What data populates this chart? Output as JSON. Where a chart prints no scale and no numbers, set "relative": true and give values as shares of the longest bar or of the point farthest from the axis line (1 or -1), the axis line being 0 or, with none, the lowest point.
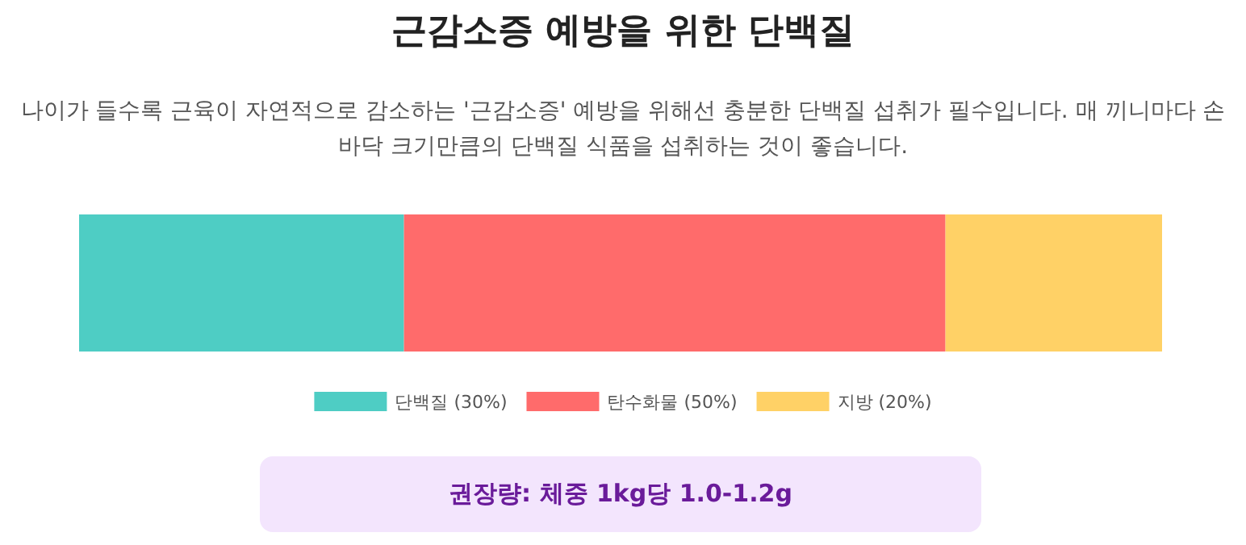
{
  "chart_data": {
    "type": "bar",
    "orientation": "horizontal",
    "stacked": true,
    "relative": true,
    "title": "근감소증 예방을 위한 단백질",
    "subtitle": "나이가 들수록 근육이 자연적으로 감소하는 '근감소증' 예방을 위해선 충분한 단백질 섭취가 필수입니다. 매 끼니마다 손바닥 크기만큼의 단백질 식품을 섭취하는 것이 좋습니다.",
    "categories": [
      null
    ],
    "legend": "bottom",
    "series": [
      {
        "name": "단백질 (30%)",
        "color": "#4ecdc4",
        "values": [
          0.3
        ]
      },
      {
        "name": "탄수화물 (50%)",
        "color": "#ff6b6b",
        "values": [
          0.5
        ]
      },
      {
        "name": "지방 (20%)",
        "color": "#ffd166",
        "values": [
          0.2
        ]
      }
    ],
    "annotations": [
      "권장량: 체중 1kg당 1.0-1.2g"
    ]
  }
}
